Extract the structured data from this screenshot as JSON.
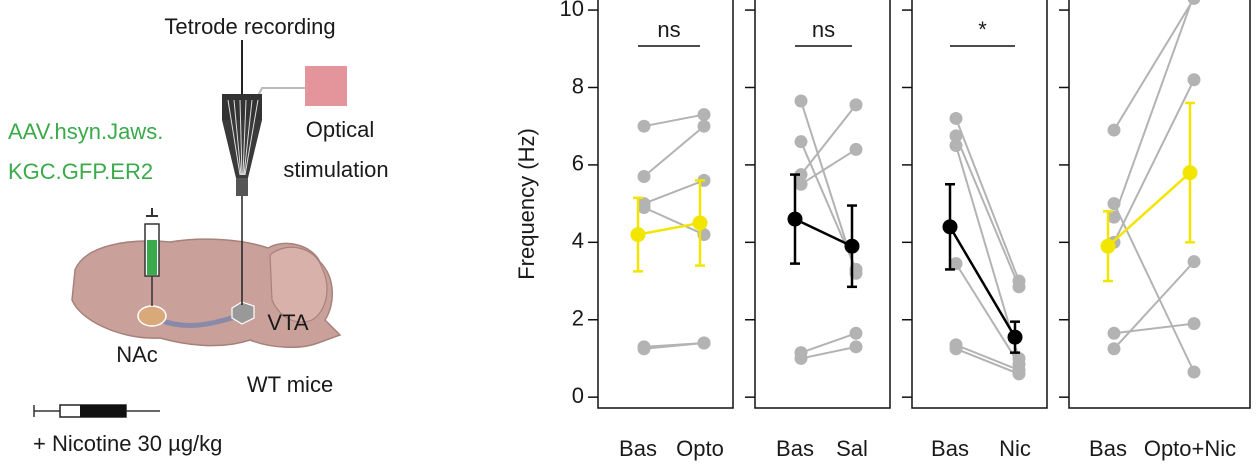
{
  "diagram": {
    "title": "Tetrode recording",
    "virus": [
      "AAV.hsyn.Jaws.",
      "KGC.GFP.ER2"
    ],
    "optical": [
      "Optical",
      "stimulation"
    ],
    "nac": "NAc",
    "vta": "VTA",
    "mice": "WT mice",
    "drug": "+ Nicotine 30 µg/kg"
  },
  "chart_data": [
    {
      "type": "paired",
      "y_label": "Frequency (Hz)",
      "ylim": [
        -0.28,
        10.26
      ],
      "yticks": [
        0,
        2,
        4,
        6,
        8,
        10
      ],
      "categories": [
        "Bas",
        "Opto"
      ],
      "significance": "ns",
      "point_color": "#b3b3b3",
      "pairs": [
        [
          7.0,
          7.3
        ],
        [
          5.7,
          7.0
        ],
        [
          5.0,
          5.6
        ],
        [
          4.9,
          4.2
        ],
        [
          1.3,
          1.4
        ],
        [
          1.25,
          1.4
        ]
      ],
      "mean": {
        "color": "#f2e600",
        "values": [
          4.2,
          4.5
        ],
        "errors": [
          0.95,
          1.1
        ]
      }
    },
    {
      "type": "paired",
      "ylim": [
        -0.28,
        10.26
      ],
      "yticks": [
        0,
        2,
        4,
        6,
        8,
        10
      ],
      "categories": [
        "Bas",
        "Sal"
      ],
      "significance": "ns",
      "point_color": "#b3b3b3",
      "pairs": [
        [
          7.65,
          3.2
        ],
        [
          6.6,
          3.3
        ],
        [
          5.75,
          7.55
        ],
        [
          5.5,
          6.4
        ],
        [
          1.15,
          1.65
        ],
        [
          1.0,
          1.3
        ]
      ],
      "mean": {
        "color": "#000000",
        "values": [
          4.6,
          3.9
        ],
        "errors": [
          1.15,
          1.05
        ]
      }
    },
    {
      "type": "paired",
      "ylim": [
        -0.28,
        10.26
      ],
      "yticks": [
        0,
        2,
        4,
        6,
        8,
        10
      ],
      "categories": [
        "Bas",
        "Nic"
      ],
      "significance": "*",
      "point_color": "#b3b3b3",
      "pairs": [
        [
          7.2,
          3.0
        ],
        [
          6.75,
          2.85
        ],
        [
          6.5,
          1.0
        ],
        [
          3.45,
          0.85
        ],
        [
          1.35,
          0.7
        ],
        [
          1.25,
          0.6
        ]
      ],
      "mean": {
        "color": "#000000",
        "values": [
          4.4,
          1.55
        ],
        "errors": [
          1.1,
          0.4
        ]
      }
    },
    {
      "type": "paired",
      "ylim": [
        -0.28,
        10.26
      ],
      "yticks": [
        0,
        2,
        4,
        6,
        8,
        10
      ],
      "categories": [
        "Bas",
        "Opto+Nic"
      ],
      "point_color": "#b3b3b3",
      "pairs": [
        [
          6.9,
          10.3
        ],
        [
          4.65,
          10.4
        ],
        [
          4.0,
          8.2
        ],
        [
          5.0,
          0.65
        ],
        [
          1.65,
          1.9
        ],
        [
          1.25,
          3.5
        ]
      ],
      "mean": {
        "color": "#f2e600",
        "values": [
          3.9,
          5.8
        ],
        "errors": [
          0.9,
          1.8
        ]
      }
    }
  ]
}
